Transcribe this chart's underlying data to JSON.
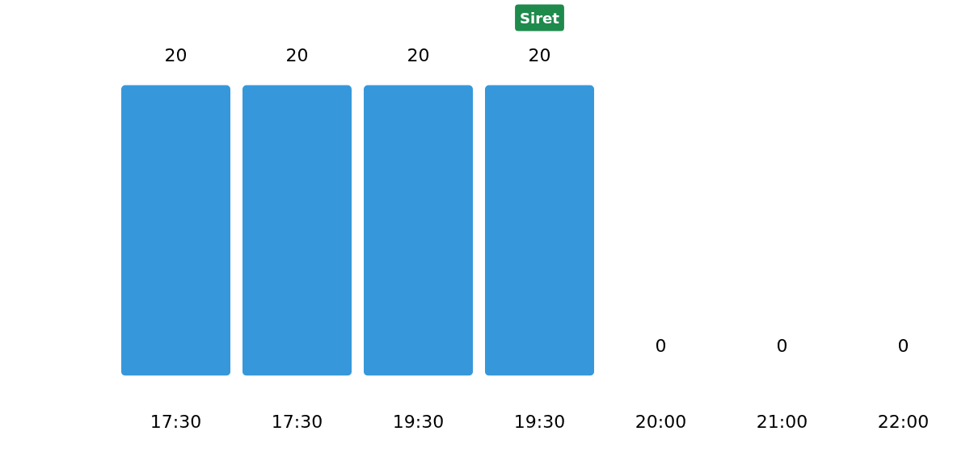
{
  "chart_data": {
    "type": "bar",
    "title": "Siret",
    "categories": [
      "17:30",
      "17:30",
      "19:30",
      "19:30",
      "20:00",
      "21:00",
      "22:00"
    ],
    "values": [
      20,
      20,
      20,
      20,
      0,
      0,
      0
    ],
    "color": "#3698db",
    "data_labels": true,
    "grid": false,
    "tick_labels": "x"
  }
}
